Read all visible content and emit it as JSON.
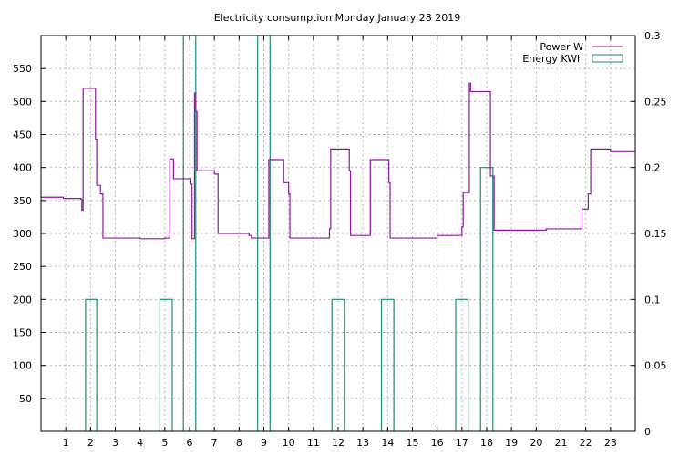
{
  "chart_data": {
    "type": "line",
    "title": "Electricity consumption Monday January 28 2019",
    "xlabel": "",
    "ylabel": "",
    "y2label": "",
    "xlim": [
      0,
      24
    ],
    "ylim": [
      0,
      600
    ],
    "y2lim": [
      0,
      0.3
    ],
    "grid": true,
    "legend_position": "top-right",
    "x_ticks": [
      1,
      2,
      3,
      4,
      5,
      6,
      7,
      8,
      9,
      10,
      11,
      12,
      13,
      14,
      15,
      16,
      17,
      18,
      19,
      20,
      21,
      22,
      23
    ],
    "x_tick_labels": [
      "1",
      "2",
      "3",
      "4",
      "5",
      "6",
      "7",
      "8",
      "9",
      "10",
      "11",
      "12",
      "13",
      "14",
      "15",
      "16",
      "17",
      "18",
      "19",
      "20",
      "21",
      "22",
      "23"
    ],
    "y_ticks": [
      50,
      100,
      150,
      200,
      250,
      300,
      350,
      400,
      450,
      500,
      550
    ],
    "y_tick_labels": [
      "50",
      "100",
      "150",
      "200",
      "250",
      "300",
      "350",
      "400",
      "450",
      "500",
      "550"
    ],
    "y2_ticks": [
      0,
      0.05,
      0.1,
      0.15,
      0.2,
      0.25,
      0.3
    ],
    "y2_tick_labels": [
      "0",
      "0.05",
      "0.1",
      "0.15",
      "0.2",
      "0.25",
      "0.3"
    ],
    "series": [
      {
        "name": "Power W",
        "axis": "y",
        "style": "steps",
        "color": "#8b1a9e",
        "points": [
          [
            0,
            355
          ],
          [
            0.9,
            353
          ],
          [
            1.6,
            352
          ],
          [
            1.65,
            335
          ],
          [
            1.7,
            520
          ],
          [
            2.15,
            520
          ],
          [
            2.2,
            443
          ],
          [
            2.25,
            373
          ],
          [
            2.4,
            360
          ],
          [
            2.5,
            293
          ],
          [
            4.0,
            292
          ],
          [
            5.0,
            293
          ],
          [
            5.2,
            413
          ],
          [
            5.35,
            383
          ],
          [
            5.8,
            383
          ],
          [
            6.05,
            375
          ],
          [
            6.1,
            292
          ],
          [
            6.2,
            513
          ],
          [
            6.25,
            485
          ],
          [
            6.3,
            395
          ],
          [
            7.0,
            390
          ],
          [
            7.15,
            300
          ],
          [
            8.0,
            300
          ],
          [
            8.4,
            297
          ],
          [
            8.5,
            293
          ],
          [
            9.2,
            412
          ],
          [
            9.8,
            377
          ],
          [
            10.0,
            360
          ],
          [
            10.05,
            293
          ],
          [
            11.5,
            293
          ],
          [
            11.65,
            307
          ],
          [
            11.7,
            428
          ],
          [
            12.0,
            428
          ],
          [
            12.45,
            395
          ],
          [
            12.5,
            297
          ],
          [
            13.2,
            297
          ],
          [
            13.3,
            412
          ],
          [
            14.0,
            412
          ],
          [
            14.05,
            377
          ],
          [
            14.1,
            293
          ],
          [
            15.5,
            293
          ],
          [
            16.0,
            297
          ],
          [
            16.6,
            297
          ],
          [
            17.0,
            310
          ],
          [
            17.05,
            362
          ],
          [
            17.15,
            362
          ],
          [
            17.3,
            528
          ],
          [
            17.35,
            515
          ],
          [
            17.8,
            515
          ],
          [
            18.1,
            515
          ],
          [
            18.15,
            387
          ],
          [
            18.3,
            305
          ],
          [
            19.0,
            305
          ],
          [
            20.0,
            305
          ],
          [
            20.4,
            307
          ],
          [
            21.5,
            307
          ],
          [
            21.85,
            337
          ],
          [
            22.1,
            360
          ],
          [
            22.2,
            428
          ],
          [
            22.6,
            428
          ],
          [
            23.0,
            424
          ],
          [
            24.0,
            424
          ]
        ]
      },
      {
        "name": "Energy KWh",
        "axis": "y2",
        "style": "bars",
        "color": "#1a8a7a",
        "bars": [
          {
            "x0": 1.8,
            "x1": 2.25,
            "value": 0.1
          },
          {
            "x0": 4.8,
            "x1": 5.3,
            "value": 0.1
          },
          {
            "x0": 5.75,
            "x1": 6.25,
            "value": 0.3
          },
          {
            "x0": 8.75,
            "x1": 9.25,
            "value": 0.3
          },
          {
            "x0": 11.75,
            "x1": 12.25,
            "value": 0.1
          },
          {
            "x0": 13.75,
            "x1": 14.25,
            "value": 0.1
          },
          {
            "x0": 16.75,
            "x1": 17.25,
            "value": 0.1
          },
          {
            "x0": 17.75,
            "x1": 18.25,
            "value": 0.2
          }
        ]
      }
    ]
  }
}
